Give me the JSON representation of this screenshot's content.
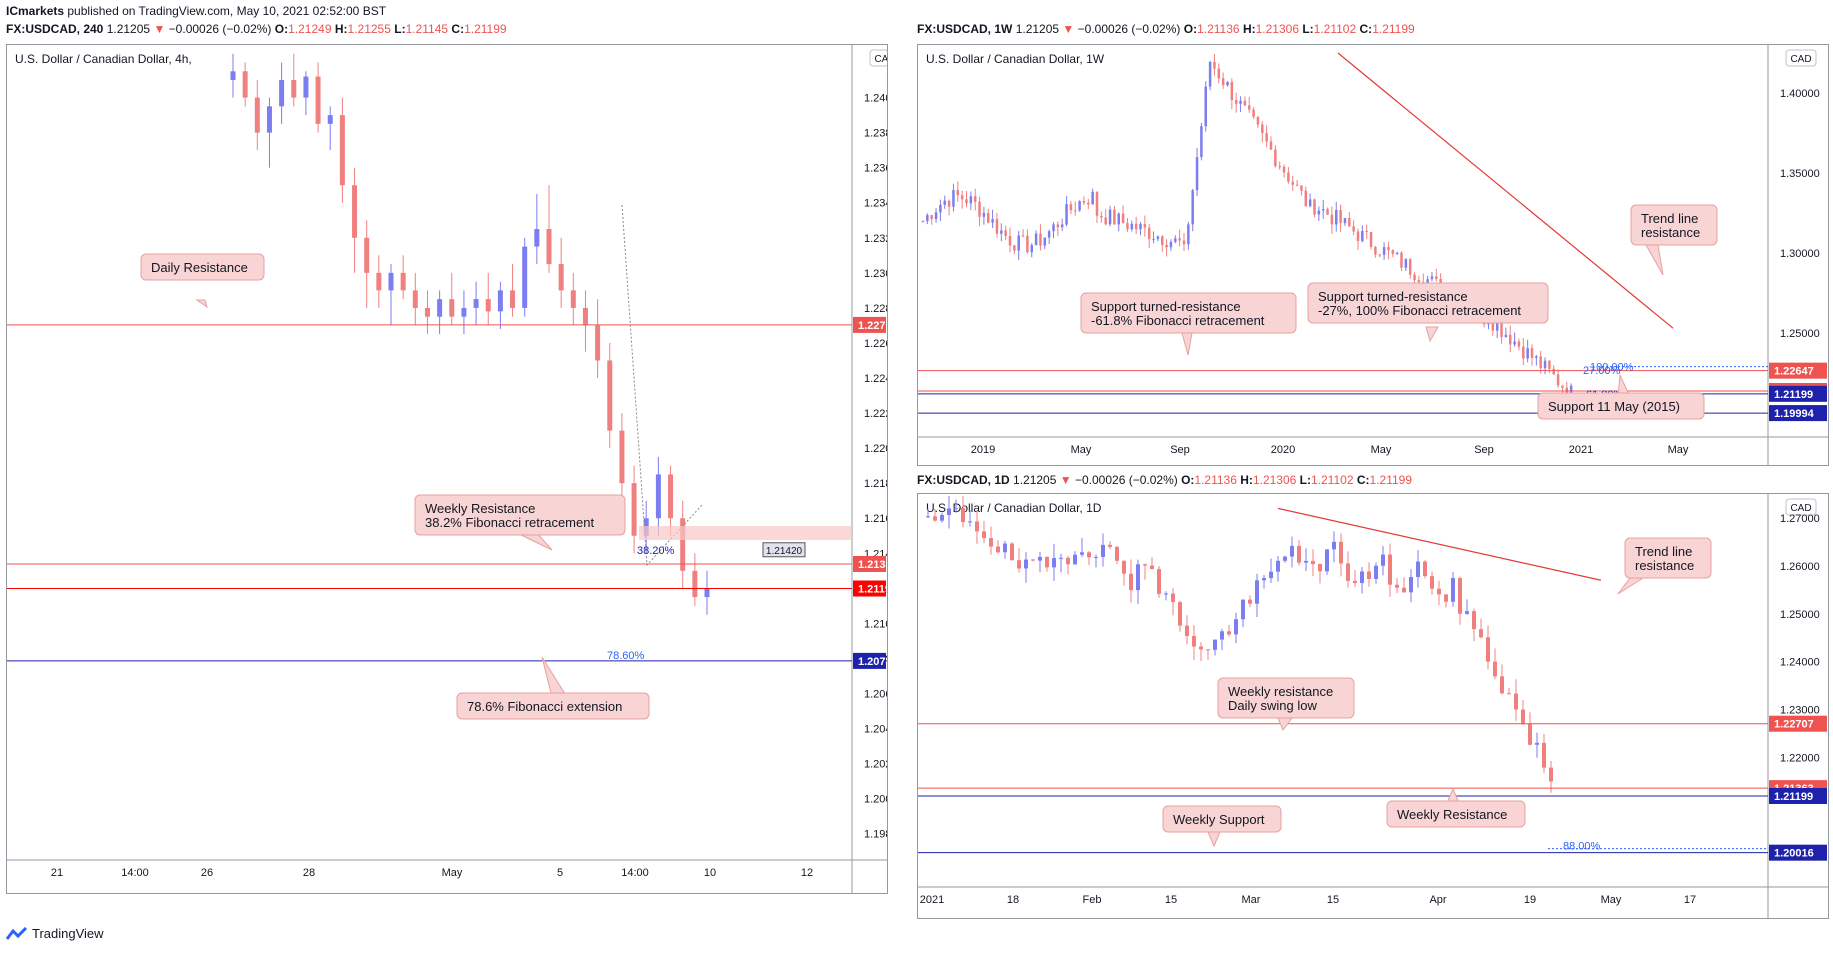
{
  "publisher": {
    "brand": "ICmarkets",
    "text": "published on TradingView.com, May 10, 2021 02:52:00 BST"
  },
  "footer_logo": "TradingView",
  "charts": [
    {
      "id": "h4",
      "header": {
        "symbol": "FX:USDCAD, 240",
        "price": "1.21205",
        "change": "−0.00026 (−0.02%)",
        "o": "1.21249",
        "h": "1.21255",
        "l": "1.21145",
        "c": "1.21199"
      },
      "title": "U.S. Dollar / Canadian Dollar, 4h,",
      "currency": "CAD",
      "y_ticks": [
        "1.24000",
        "1.23800",
        "1.23600",
        "1.23400",
        "1.23200",
        "1.23000",
        "1.22800",
        "1.22600",
        "1.22400",
        "1.22200",
        "1.22000",
        "1.21800",
        "1.21600",
        "1.21400",
        "1.21200",
        "1.21000",
        "1.20800",
        "1.20600",
        "1.20400",
        "1.20200",
        "1.20000",
        "1.19800"
      ],
      "x_ticks": [
        "21",
        "14:00",
        "26",
        "28",
        "May",
        "5",
        "14:00",
        "10",
        "12"
      ],
      "levels": [
        {
          "value": "1.22703",
          "color": "#ef5350"
        },
        {
          "value": "1.21339",
          "color": "#ef5350"
        },
        {
          "value": "1.21199",
          "color": "#ff0000"
        },
        {
          "value": "1.20786",
          "color": "#1e22aa"
        }
      ],
      "fib_labels": [
        "38.20%",
        "78.60%"
      ],
      "marker": "1.21420",
      "callouts": [
        {
          "lines": [
            "Daily Resistance"
          ]
        },
        {
          "lines": [
            "Weekly Resistance",
            "38.2% Fibonacci retracement"
          ]
        },
        {
          "lines": [
            "78.6% Fibonacci extension"
          ]
        }
      ]
    },
    {
      "id": "w1",
      "header": {
        "symbol": "FX:USDCAD, 1W",
        "price": "1.21205",
        "change": "−0.00026 (−0.02%)",
        "o": "1.21136",
        "h": "1.21306",
        "l": "1.21102",
        "c": "1.21199"
      },
      "title": "U.S. Dollar / Canadian Dollar, 1W",
      "currency": "CAD",
      "y_ticks": [
        "1.40000",
        "1.35000",
        "1.30000",
        "1.25000"
      ],
      "x_ticks": [
        "2019",
        "May",
        "Sep",
        "2020",
        "May",
        "Sep",
        "2021",
        "May"
      ],
      "levels": [
        {
          "value": "1.22647",
          "color": "#ef5350"
        },
        {
          "value": "1.21376",
          "color": "#ef5350"
        },
        {
          "value": "1.21199",
          "color": "#1e22aa"
        },
        {
          "value": "1.19994",
          "color": "#1e22aa"
        }
      ],
      "fib_labels": [
        "100.00%",
        "27.00%",
        "61.80%"
      ],
      "callouts": [
        {
          "lines": [
            "Trend line",
            "resistance"
          ]
        },
        {
          "lines": [
            "Support turned-resistance",
            "-61.8% Fibonacci retracement"
          ]
        },
        {
          "lines": [
            "Support turned-resistance",
            "-27%, 100% Fibonacci retracement"
          ]
        },
        {
          "lines": [
            "Support 11 May (2015)"
          ]
        }
      ]
    },
    {
      "id": "d1",
      "header": {
        "symbol": "FX:USDCAD, 1D",
        "price": "1.21205",
        "change": "−0.00026 (−0.02%)",
        "o": "1.21136",
        "h": "1.21306",
        "l": "1.21102",
        "c": "1.21199"
      },
      "title": "U.S. Dollar / Canadian Dollar, 1D",
      "currency": "CAD",
      "y_ticks": [
        "1.27000",
        "1.26000",
        "1.25000",
        "1.24000",
        "1.23000",
        "1.22000"
      ],
      "x_ticks": [
        "2021",
        "18",
        "Feb",
        "15",
        "Mar",
        "15",
        "Apr",
        "19",
        "May",
        "17"
      ],
      "levels": [
        {
          "value": "1.22707",
          "color": "#ef5350"
        },
        {
          "value": "1.21363",
          "color": "#ef5350"
        },
        {
          "value": "1.21199",
          "color": "#1e22aa"
        },
        {
          "value": "1.20016",
          "color": "#1e22aa"
        }
      ],
      "fib_labels": [
        "88.00%"
      ],
      "callouts": [
        {
          "lines": [
            "Trend line",
            "resistance"
          ]
        },
        {
          "lines": [
            "Weekly resistance",
            "Daily swing low"
          ]
        },
        {
          "lines": [
            "Weekly Resistance"
          ]
        },
        {
          "lines": [
            "Weekly Support"
          ]
        }
      ]
    }
  ],
  "chart_data": [
    {
      "type": "candlestick",
      "title": "U.S. Dollar / Canadian Dollar, 4h,",
      "ylim": [
        1.1965,
        1.243
      ],
      "candles": [
        [
          1.241,
          1.2425,
          1.24,
          1.2415
        ],
        [
          1.2415,
          1.242,
          1.2395,
          1.24
        ],
        [
          1.24,
          1.241,
          1.237,
          1.238
        ],
        [
          1.238,
          1.24,
          1.236,
          1.2395
        ],
        [
          1.2395,
          1.242,
          1.2385,
          1.241
        ],
        [
          1.241,
          1.2425,
          1.2395,
          1.24
        ],
        [
          1.24,
          1.2415,
          1.239,
          1.2412
        ],
        [
          1.2412,
          1.242,
          1.238,
          1.2385
        ],
        [
          1.2385,
          1.2395,
          1.237,
          1.239
        ],
        [
          1.239,
          1.24,
          1.234,
          1.235
        ],
        [
          1.235,
          1.236,
          1.23,
          1.232
        ],
        [
          1.232,
          1.233,
          1.228,
          1.23
        ],
        [
          1.23,
          1.231,
          1.228,
          1.229
        ],
        [
          1.229,
          1.2305,
          1.227,
          1.23
        ],
        [
          1.23,
          1.231,
          1.2285,
          1.229
        ],
        [
          1.229,
          1.23,
          1.227,
          1.228
        ],
        [
          1.228,
          1.229,
          1.2265,
          1.2275
        ],
        [
          1.2275,
          1.229,
          1.2265,
          1.2285
        ],
        [
          1.2285,
          1.23,
          1.227,
          1.2275
        ],
        [
          1.2275,
          1.229,
          1.2265,
          1.228
        ],
        [
          1.228,
          1.2295,
          1.227,
          1.2285
        ],
        [
          1.2285,
          1.23,
          1.227,
          1.2278
        ],
        [
          1.2278,
          1.2295,
          1.2268,
          1.229
        ],
        [
          1.229,
          1.2305,
          1.2275,
          1.228
        ],
        [
          1.228,
          1.232,
          1.2275,
          1.2315
        ],
        [
          1.2315,
          1.2345,
          1.2305,
          1.2325
        ],
        [
          1.2325,
          1.235,
          1.23,
          1.2305
        ],
        [
          1.2305,
          1.232,
          1.228,
          1.229
        ],
        [
          1.229,
          1.23,
          1.227,
          1.228
        ],
        [
          1.228,
          1.229,
          1.2255,
          1.227
        ],
        [
          1.227,
          1.2285,
          1.224,
          1.225
        ],
        [
          1.225,
          1.226,
          1.22,
          1.221
        ],
        [
          1.221,
          1.222,
          1.217,
          1.218
        ],
        [
          1.218,
          1.219,
          1.214,
          1.215
        ],
        [
          1.215,
          1.217,
          1.214,
          1.216
        ],
        [
          1.216,
          1.2195,
          1.215,
          1.2185
        ],
        [
          1.2185,
          1.219,
          1.215,
          1.216
        ],
        [
          1.216,
          1.217,
          1.212,
          1.213
        ],
        [
          1.213,
          1.214,
          1.211,
          1.2115
        ],
        [
          1.2115,
          1.213,
          1.2105,
          1.212
        ]
      ]
    },
    {
      "type": "candlestick",
      "title": "U.S. Dollar / Canadian Dollar, 1W",
      "ylim": [
        1.185,
        1.43
      ],
      "trend_line": [
        [
          1.425
        ],
        [
          1.253
        ]
      ]
    },
    {
      "type": "candlestick",
      "title": "U.S. Dollar / Canadian Dollar, 1D",
      "ylim": [
        1.193,
        1.275
      ],
      "trend_line": [
        [
          1.272
        ],
        [
          1.257
        ]
      ]
    }
  ]
}
